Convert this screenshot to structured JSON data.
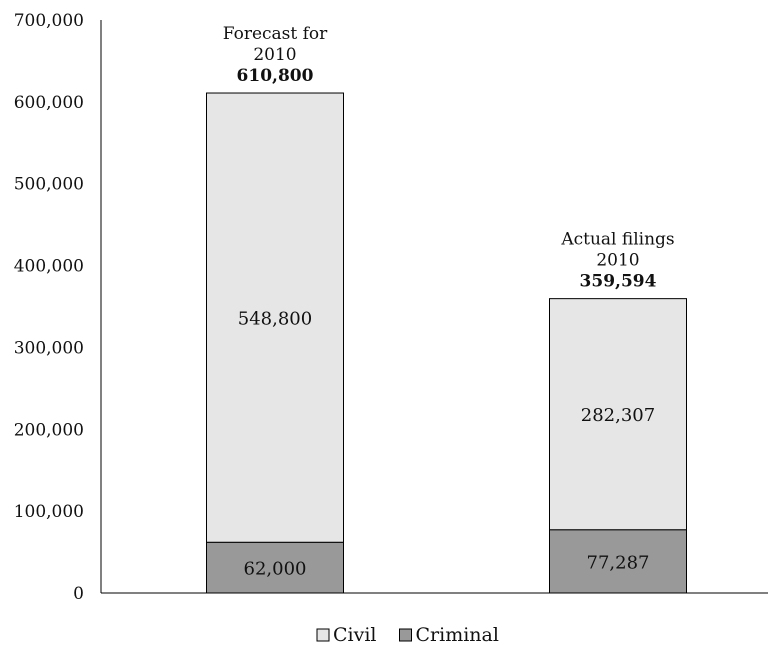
{
  "chart_data": {
    "type": "bar",
    "stacked": true,
    "categories": [
      "Forecast for 2010",
      "Actual filings 2010"
    ],
    "series": [
      {
        "name": "Criminal",
        "values": [
          62000,
          77287
        ],
        "color": "#999999"
      },
      {
        "name": "Civil",
        "values": [
          548800,
          282307
        ],
        "color": "#e6e6e6"
      }
    ],
    "segment_labels": {
      "Criminal": [
        "62,000",
        "77,287"
      ],
      "Civil": [
        "548,800",
        "282,307"
      ]
    },
    "bar_top_labels": [
      {
        "lines": [
          "Forecast for",
          "2010"
        ],
        "total": "610,800"
      },
      {
        "lines": [
          "Actual filings",
          "2010"
        ],
        "total": "359,594"
      }
    ],
    "ylim": [
      0,
      700000
    ],
    "yticks": [
      {
        "value": 0,
        "label": "0"
      },
      {
        "value": 100000,
        "label": "100,000"
      },
      {
        "value": 200000,
        "label": "200,000"
      },
      {
        "value": 300000,
        "label": "300,000"
      },
      {
        "value": 400000,
        "label": "400,000"
      },
      {
        "value": 500000,
        "label": "500,000"
      },
      {
        "value": 600000,
        "label": "600,000"
      },
      {
        "value": 700000,
        "label": "700,000"
      }
    ],
    "title": "",
    "xlabel": "",
    "ylabel": "",
    "grid": false,
    "legend": {
      "position": "bottom",
      "entries": [
        {
          "name": "Civil",
          "color": "#e6e6e6"
        },
        {
          "name": "Criminal",
          "color": "#999999"
        }
      ]
    }
  }
}
